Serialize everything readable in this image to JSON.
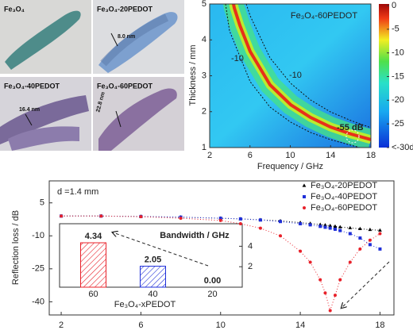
{
  "micrographs": [
    {
      "label": "Fe₃O₄"
    },
    {
      "label": "Fe₃O₄-20PEDOT",
      "scale": "8.0 nm"
    },
    {
      "label": "Fe₃O₄-40PEDOT",
      "scale": "16.4 nm"
    },
    {
      "label": "Fe₃O₄-60PEDOT",
      "scale": "22.8 nm"
    }
  ],
  "chart_data": [
    {
      "type": "contour",
      "title": "Fe₃O₄-60PEDOT",
      "x_label": "Frequency / GHz",
      "y_label": "Thickness / mm",
      "xlim": [
        2,
        18
      ],
      "xticks": [
        2,
        6,
        10,
        14,
        18
      ],
      "ylim": [
        1,
        5
      ],
      "yticks": [
        1,
        2,
        3,
        4,
        5
      ],
      "clim": [
        -30,
        0
      ],
      "colorbar_ticks": [
        0,
        -5,
        -10,
        -15,
        -20,
        -25,
        {
          "value": -30,
          "label": "<-30dB"
        }
      ],
      "annotations": [
        "-10",
        "-10",
        "-55 dB"
      ]
    },
    {
      "type": "line",
      "annotation": "d =1.4 mm",
      "y_label": "Reflection loss / dB",
      "x": [
        2,
        4,
        6,
        8,
        10,
        11,
        12,
        13,
        14,
        14.5,
        15,
        15.25,
        15.5,
        15.75,
        16,
        16.5,
        17,
        17.5,
        18
      ],
      "xlim": [
        1.4,
        18.7
      ],
      "xticks": [
        2,
        6,
        10,
        14,
        18
      ],
      "ylim": [
        -46,
        15
      ],
      "yticks": [
        5,
        -10,
        -25,
        -40
      ],
      "legend": "upper right",
      "series": [
        {
          "name": "Fe₃O₄-20PEDOT",
          "color": "#000000",
          "marker": "triangle",
          "values": [
            -1,
            -1,
            -1.2,
            -1.5,
            -2,
            -2.3,
            -2.7,
            -3.2,
            -4,
            -4.4,
            -4.9,
            -5.1,
            -5.4,
            -5.7,
            -6,
            -6.4,
            -6.8,
            -7.2,
            -7.5
          ]
        },
        {
          "name": "Fe₃O₄-40PEDOT",
          "color": "#1f2fd8",
          "marker": "square",
          "values": [
            -1,
            -1,
            -1.2,
            -1.5,
            -2,
            -2.3,
            -2.8,
            -3.5,
            -4.5,
            -5,
            -5.7,
            -6.1,
            -6.5,
            -7,
            -7.6,
            -9,
            -11,
            -14,
            -16
          ]
        },
        {
          "name": "Fe₃O₄-60PEDOT",
          "color": "#e8212a",
          "marker": "circle",
          "values": [
            -1,
            -1,
            -1.3,
            -2,
            -3,
            -4.5,
            -6.5,
            -10,
            -17,
            -22,
            -30,
            -36,
            -44,
            -37,
            -30,
            -22,
            -16,
            -12,
            -9
          ]
        }
      ]
    },
    {
      "type": "bar",
      "title": "Bandwidth / GHz",
      "x_label": "Fe₃O₄-xPEDOT",
      "categories": [
        "60",
        "40",
        "20"
      ],
      "values": [
        4.34,
        2.05,
        0
      ],
      "value_labels": [
        "4.34",
        "2.05",
        "0.00"
      ],
      "colors": [
        "#e8212a",
        "#1f2fd8",
        "#000000"
      ],
      "ylim": [
        0,
        6.2
      ],
      "yticks": [
        2,
        4
      ]
    }
  ]
}
